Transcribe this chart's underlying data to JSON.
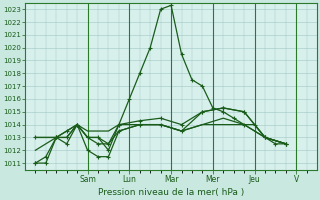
{
  "bg_color": "#c8e8e0",
  "plot_bg": "#d8f0ec",
  "grid_color": "#a0c8c4",
  "line_color": "#1a5c1a",
  "spine_color": "#2a7a2a",
  "xlabel": "Pression niveau de la mer( hPa )",
  "ylim": [
    1010.5,
    1023.5
  ],
  "yticks": [
    1011,
    1012,
    1013,
    1014,
    1015,
    1016,
    1017,
    1018,
    1019,
    1020,
    1021,
    1022,
    1023
  ],
  "xlim": [
    -0.5,
    13.5
  ],
  "day_labels": [
    "Sam",
    "Lun",
    "Mar",
    "Mer",
    "Jeu",
    "V"
  ],
  "day_positions": [
    2.5,
    4.5,
    6.5,
    8.5,
    10.5,
    12.5
  ],
  "series": [
    {
      "x": [
        0,
        0.5,
        1,
        1.5,
        2,
        2.5,
        3,
        3.5,
        4,
        4.5,
        5,
        5.5,
        6,
        6.5,
        7,
        7.5,
        8,
        8.5,
        9,
        9.5,
        10,
        10.5,
        11,
        11.5,
        12
      ],
      "y": [
        1011,
        1011,
        1013,
        1013,
        1014,
        1013,
        1013,
        1012,
        1014,
        1016,
        1018,
        1020,
        1023,
        1023.3,
        1019.5,
        1017.5,
        1017,
        1015.3,
        1015,
        1014.5,
        1014,
        1014,
        1013,
        1012.5,
        1012.5
      ],
      "has_markers": true
    },
    {
      "x": [
        0,
        0.5,
        1,
        1.5,
        2,
        2.5,
        3,
        3.5,
        4,
        5,
        6,
        7,
        8,
        9,
        10,
        11,
        12
      ],
      "y": [
        1013,
        1013,
        1013,
        1013.5,
        1014,
        1013.5,
        1013.5,
        1013.5,
        1014,
        1014,
        1014,
        1013.5,
        1014,
        1014,
        1014,
        1013,
        1012.5
      ],
      "has_markers": false
    },
    {
      "x": [
        0,
        0.5,
        1,
        1.5,
        2,
        2.5,
        3,
        3.5,
        4,
        5,
        6,
        7,
        8,
        9,
        10,
        11,
        12
      ],
      "y": [
        1012,
        1012.5,
        1013,
        1013,
        1014,
        1013,
        1013,
        1012.5,
        1013.5,
        1014,
        1014,
        1013.5,
        1014,
        1014.5,
        1014,
        1013,
        1012.5
      ],
      "has_markers": false
    },
    {
      "x": [
        0,
        0.5,
        1,
        1.5,
        2,
        2.5,
        3,
        3.5,
        4,
        5,
        6,
        7,
        8,
        9,
        10,
        11,
        12
      ],
      "y": [
        1011,
        1011.5,
        1013,
        1012.5,
        1014,
        1012,
        1011.5,
        1011.5,
        1013.5,
        1014,
        1014,
        1013.5,
        1015,
        1015.3,
        1015,
        1013,
        1012.5
      ],
      "has_markers": true
    },
    {
      "x": [
        0,
        1,
        1.5,
        2,
        2.5,
        3,
        3.5,
        4,
        5,
        6,
        7,
        8,
        9,
        10,
        11,
        12
      ],
      "y": [
        1013,
        1013,
        1013.5,
        1014,
        1013,
        1012.5,
        1012.5,
        1014,
        1014.3,
        1014.5,
        1014,
        1015,
        1015.3,
        1015,
        1013,
        1012.5
      ],
      "has_markers": true
    }
  ]
}
